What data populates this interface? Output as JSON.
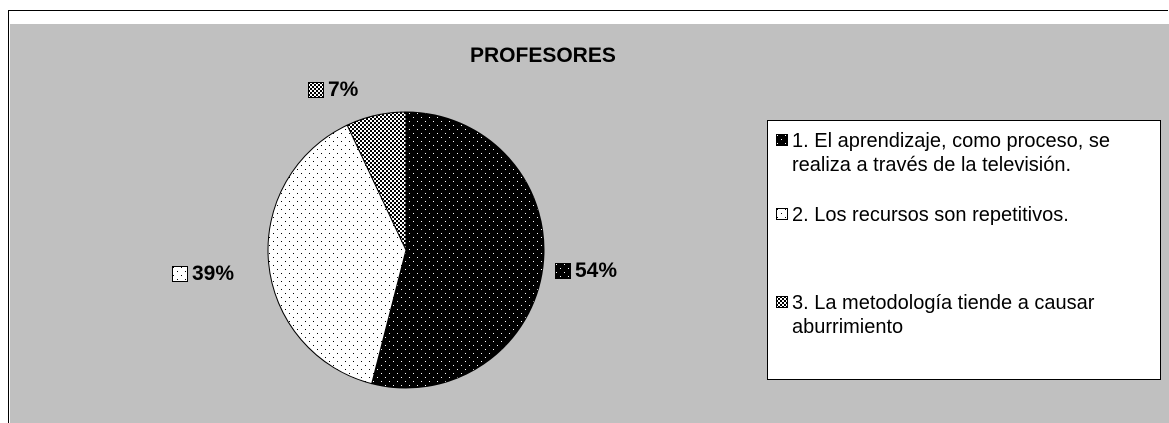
{
  "chart_data": {
    "type": "pie",
    "title": "PROFESORES",
    "slices": [
      {
        "label": "1. El aprendizaje, como proceso, se realiza a través de la televisión.",
        "value": 54,
        "display": "54%",
        "pattern": "dark-dots"
      },
      {
        "label": "2. Los recursos son repetitivos.",
        "value": 39,
        "display": "39%",
        "pattern": "light-dots"
      },
      {
        "label": "3. La metodología tiende a causar aburrimiento",
        "value": 7,
        "display": "7%",
        "pattern": "checker"
      }
    ],
    "legend_position": "right",
    "background_color": "#c0c0c0"
  }
}
